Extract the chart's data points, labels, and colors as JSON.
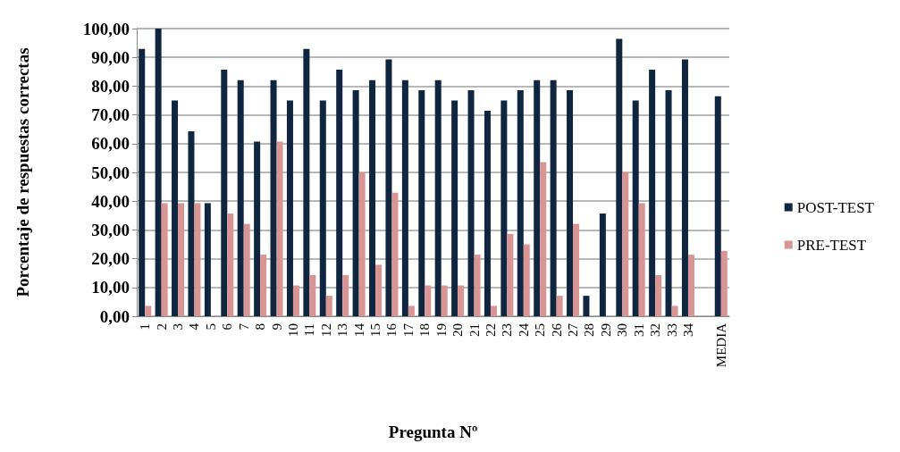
{
  "chart_data": {
    "type": "bar",
    "xlabel": "Pregunta Nº",
    "ylabel": "Porcentaje de respuestas correctas",
    "categories": [
      "1",
      "2",
      "3",
      "4",
      "5",
      "6",
      "7",
      "8",
      "9",
      "10",
      "11",
      "12",
      "13",
      "14",
      "15",
      "16",
      "17",
      "18",
      "19",
      "20",
      "21",
      "22",
      "23",
      "24",
      "25",
      "26",
      "27",
      "28",
      "29",
      "30",
      "31",
      "32",
      "33",
      "34",
      null,
      "MEDIA"
    ],
    "series": [
      {
        "name": "POST-TEST",
        "color": "#10253f",
        "values": [
          92.9,
          100,
          75,
          64.3,
          39.3,
          85.7,
          82.1,
          60.7,
          82.1,
          75,
          92.9,
          75,
          85.7,
          78.6,
          82.1,
          89.3,
          82.1,
          78.6,
          82.1,
          75,
          78.6,
          71.4,
          75,
          78.6,
          82.1,
          82.1,
          78.6,
          7.1,
          35.7,
          96.4,
          75,
          85.7,
          78.6,
          89.3,
          null,
          76.5
        ]
      },
      {
        "name": "PRE-TEST",
        "color": "#d99594",
        "values": [
          3.6,
          39.3,
          39.3,
          39.3,
          0,
          35.7,
          32.1,
          21.4,
          60.7,
          10.7,
          14.3,
          7.1,
          14.3,
          50,
          17.9,
          42.9,
          3.6,
          10.7,
          10.7,
          10.7,
          21.4,
          3.6,
          28.6,
          25,
          53.6,
          7.1,
          32.1,
          0,
          0,
          50,
          39.3,
          14.3,
          3.6,
          21.4,
          null,
          22.7
        ]
      }
    ],
    "ylim": [
      0,
      100
    ],
    "yticks": [
      {
        "value": 0,
        "label": "0,00"
      },
      {
        "value": 10,
        "label": "10,00"
      },
      {
        "value": 20,
        "label": "20,00"
      },
      {
        "value": 30,
        "label": "30,00"
      },
      {
        "value": 40,
        "label": "40,00"
      },
      {
        "value": 50,
        "label": "50,00"
      },
      {
        "value": 60,
        "label": "60,00"
      },
      {
        "value": 70,
        "label": "70,00"
      },
      {
        "value": 80,
        "label": "80,00"
      },
      {
        "value": 90,
        "label": "90,00"
      },
      {
        "value": 100,
        "label": "100,00"
      }
    ],
    "grid": "y",
    "legend": "right"
  }
}
